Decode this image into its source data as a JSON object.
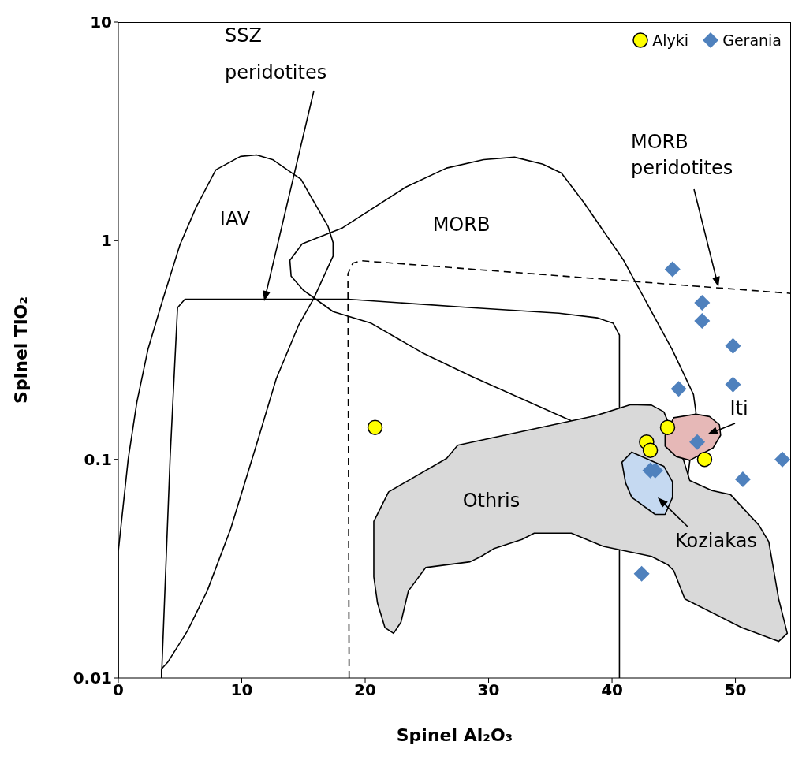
{
  "chart_data": {
    "type": "scatter",
    "xlabel": "Spinel Al₂O₃",
    "ylabel": "Spinel TiO₂",
    "log": "y",
    "xlim": [
      0,
      54.5
    ],
    "ylim": [
      0.01,
      10
    ],
    "xticks": [
      0,
      10,
      20,
      30,
      40,
      50
    ],
    "yticks": [
      0.01,
      0.1,
      1,
      10
    ],
    "legend": "top right",
    "series": [
      {
        "type": "line",
        "color": "#000000",
        "line_style": "solid",
        "x": [
          0,
          0,
          0.8,
          1.5,
          2.4,
          3.6,
          5.0,
          6.3,
          7.9,
          9.9,
          11.2,
          12.5,
          14.8,
          17.0,
          17.4,
          17.4,
          15.8,
          14.6,
          12.8,
          11.2,
          9.1,
          7.2,
          5.6,
          4.0,
          3.5,
          3.5
        ],
        "values": [
          0.01,
          0.038,
          0.1,
          0.182,
          0.318,
          0.537,
          0.96,
          1.42,
          2.11,
          2.43,
          2.47,
          2.35,
          1.91,
          1.16,
          0.98,
          0.85,
          0.54,
          0.41,
          0.234,
          0.117,
          0.048,
          0.025,
          0.0164,
          0.0118,
          0.011,
          0.01
        ]
      },
      {
        "type": "line",
        "color": "#000000",
        "line_style": "solid",
        "x": [
          3.5,
          4.2,
          4.8,
          5.4,
          18.6,
          28.6,
          35.7,
          38.8,
          40.1,
          40.6,
          40.6
        ],
        "values": [
          0.01,
          0.102,
          0.494,
          0.54,
          0.54,
          0.494,
          0.466,
          0.444,
          0.419,
          0.37,
          0.01
        ]
      },
      {
        "type": "line",
        "color": "#000000",
        "line_style": "solid",
        "x": [
          36.7,
          28.6,
          24.6,
          20.5,
          17.4,
          15.0,
          14.0,
          13.9,
          14.9,
          18.1,
          23.3,
          26.6,
          29.6,
          32.1,
          34.4,
          35.9,
          37.7,
          40.9,
          44.9,
          46.6,
          46.8,
          46.1
        ],
        "values": [
          0.15,
          0.24,
          0.308,
          0.419,
          0.474,
          0.593,
          0.689,
          0.813,
          0.968,
          1.14,
          1.76,
          2.15,
          2.35,
          2.41,
          2.24,
          2.04,
          1.5,
          0.82,
          0.316,
          0.198,
          0.164,
          0.08
        ]
      },
      {
        "type": "line",
        "color": "#000000",
        "line_style": "dashed",
        "x": [
          18.7,
          18.6,
          19.0,
          19.7,
          54.5
        ],
        "values": [
          0.01,
          0.706,
          0.79,
          0.81,
          0.574
        ]
      },
      {
        "type": "area",
        "color": "#d9d9d9",
        "x": [
          20.7,
          21.9,
          26.6,
          27.5,
          38.6,
          41.5,
          43.2,
          44.2,
          44.5,
          45.8,
          46.3,
          48.1,
          49.6,
          51.9,
          52.7,
          53.5,
          54.2,
          53.5,
          50.5,
          45.9,
          45.0,
          44.5,
          43.2,
          39.3,
          36.7,
          33.7,
          32.7,
          30.4,
          29.4,
          28.5,
          24.9,
          23.5,
          22.9,
          22.3,
          21.6,
          21.0,
          20.7
        ],
        "values": [
          0.052,
          0.071,
          0.101,
          0.116,
          0.158,
          0.178,
          0.177,
          0.165,
          0.15,
          0.099,
          0.08,
          0.072,
          0.069,
          0.05,
          0.042,
          0.023,
          0.016,
          0.0147,
          0.017,
          0.023,
          0.031,
          0.033,
          0.036,
          0.04,
          0.046,
          0.046,
          0.043,
          0.039,
          0.036,
          0.034,
          0.032,
          0.025,
          0.018,
          0.016,
          0.017,
          0.022,
          0.029
        ]
      },
      {
        "type": "area",
        "color": "#c5d9f1",
        "x": [
          40.8,
          41.6,
          44.2,
          44.9,
          44.9,
          44.3,
          43.5,
          41.6,
          41.1
        ],
        "values": [
          0.097,
          0.108,
          0.093,
          0.079,
          0.067,
          0.056,
          0.056,
          0.067,
          0.078
        ]
      },
      {
        "type": "area",
        "color": "#e6b8b7",
        "x": [
          44.3,
          45.0,
          46.8,
          47.9,
          48.7,
          48.8,
          48.2,
          46.3,
          45.2,
          44.3
        ],
        "values": [
          0.129,
          0.155,
          0.161,
          0.157,
          0.144,
          0.129,
          0.113,
          0.099,
          0.103,
          0.115
        ]
      },
      {
        "name": "Alyki",
        "color": "#ffff00",
        "marker": "circle",
        "x": [
          20.8,
          44.5,
          42.8,
          43.1,
          47.5
        ],
        "values": [
          0.14,
          0.14,
          0.12,
          0.11,
          0.1
        ]
      },
      {
        "name": "Gerania",
        "color": "#4f81bd",
        "marker": "diamond",
        "x": [
          44.9,
          47.3,
          47.3,
          49.8,
          49.8,
          45.4,
          46.9,
          43.1,
          43.5,
          50.6,
          53.8,
          42.4
        ],
        "values": [
          0.74,
          0.52,
          0.43,
          0.33,
          0.22,
          0.21,
          0.12,
          0.089,
          0.089,
          0.081,
          0.1,
          0.03
        ]
      }
    ],
    "annotations": [
      "IAV",
      "MORB",
      "SSZ peridotites",
      "MORB peridotites",
      "Othris",
      "Iti",
      "Koziakas"
    ]
  }
}
